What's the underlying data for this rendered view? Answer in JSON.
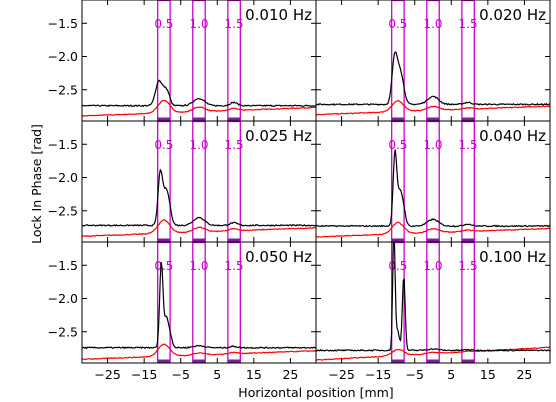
{
  "chart_data": {
    "type": "line",
    "xlabel": "Horizontal position [mm]",
    "ylabel": "Lock In Phase [rad]",
    "xlim": [
      -32,
      32
    ],
    "ylim": [
      -2.97,
      -1.15
    ],
    "x_ticks": [
      -25,
      -15,
      -5,
      5,
      15,
      25
    ],
    "y_ticks": [
      -1.5,
      -2.0,
      -2.5
    ],
    "y_tick_labels": [
      "−1.5",
      "−2.0",
      "−2.5"
    ],
    "x_tick_labels": [
      "−25",
      "−15",
      "−5",
      "5",
      "15",
      "25"
    ],
    "grid": false,
    "box_color": "#cc00cc",
    "series_colors": [
      "#000000",
      "#ff0000"
    ],
    "boxes": [
      {
        "label": "0.5",
        "x0": -11.3,
        "x1": -7.9
      },
      {
        "label": "1.0",
        "x0": -1.7,
        "x1": 1.7
      },
      {
        "label": "1.5",
        "x0": 7.9,
        "x1": 11.3
      }
    ],
    "panels": [
      {
        "label": "0.010 Hz",
        "black": {
          "base": -2.74,
          "peaks": [
            [
              -11.0,
              0.36,
              0.9
            ],
            [
              -9.2,
              0.2,
              0.8
            ],
            [
              -8.3,
              0.08,
              0.6
            ],
            [
              0,
              0.11,
              1.5
            ],
            [
              9.5,
              0.05,
              1.0
            ]
          ]
        },
        "red": {
          "base": -2.83,
          "slope": 0.002,
          "peaks": [
            [
              -9.6,
              0.19,
              1.6
            ],
            [
              0,
              0.07,
              1.6
            ],
            [
              9.5,
              0.03,
              1.2
            ]
          ]
        }
      },
      {
        "label": "0.020 Hz",
        "black": {
          "base": -2.72,
          "peaks": [
            [
              -10.5,
              0.7,
              0.7
            ],
            [
              -9.2,
              0.4,
              0.7
            ],
            [
              -8.2,
              0.2,
              0.7
            ],
            [
              0,
              0.12,
              1.5
            ],
            [
              9.5,
              0.03,
              1.0
            ]
          ]
        },
        "red": {
          "base": -2.81,
          "slope": 0.002,
          "peaks": [
            [
              -9.6,
              0.16,
              1.6
            ],
            [
              0,
              0.06,
              1.6
            ],
            [
              9.5,
              0.02,
              1.2
            ]
          ]
        }
      },
      {
        "label": "0.025 Hz",
        "black": {
          "base": -2.72,
          "peaks": [
            [
              -10.6,
              0.78,
              0.6
            ],
            [
              -9.2,
              0.42,
              0.7
            ],
            [
              -8.2,
              0.25,
              0.7
            ],
            [
              0,
              0.12,
              1.5
            ],
            [
              9.5,
              0.04,
              1.0
            ]
          ]
        },
        "red": {
          "base": -2.82,
          "slope": 0.002,
          "peaks": [
            [
              -9.6,
              0.2,
              1.6
            ],
            [
              0,
              0.07,
              1.6
            ],
            [
              9.5,
              0.03,
              1.2
            ]
          ]
        }
      },
      {
        "label": "0.040 Hz",
        "black": {
          "base": -2.73,
          "peaks": [
            [
              -10.4,
              1.1,
              0.5
            ],
            [
              -9.1,
              0.45,
              0.6
            ],
            [
              -8.1,
              0.25,
              0.6
            ],
            [
              0,
              0.1,
              1.5
            ],
            [
              9.5,
              0.03,
              1.0
            ]
          ]
        },
        "red": {
          "base": -2.83,
          "slope": 0.002,
          "peaks": [
            [
              -9.6,
              0.17,
              1.6
            ],
            [
              0,
              0.06,
              1.6
            ],
            [
              9.5,
              0.02,
              1.2
            ]
          ]
        }
      },
      {
        "label": "0.050 Hz",
        "black": {
          "base": -2.74,
          "peaks": [
            [
              -10.3,
              1.28,
              0.45
            ],
            [
              -9.0,
              0.4,
              0.55
            ],
            [
              -8.0,
              0.2,
              0.6
            ],
            [
              0,
              0.03,
              1.5
            ],
            [
              9.5,
              0.02,
              1.0
            ]
          ]
        },
        "red": {
          "base": -2.85,
          "slope": 0.002,
          "peaks": [
            [
              -9.6,
              0.18,
              1.6
            ],
            [
              0,
              0.03,
              1.6
            ],
            [
              9.5,
              0.02,
              1.2
            ]
          ]
        }
      },
      {
        "label": "0.100 Hz",
        "black": {
          "base": -2.78,
          "peaks": [
            [
              -10.7,
              1.8,
              0.32
            ],
            [
              -9.7,
              0.3,
              0.5
            ],
            [
              -8.0,
              1.12,
              0.38
            ],
            [
              0,
              0.02,
              1.5
            ],
            [
              9.5,
              0.01,
              1.0
            ]
          ]
        },
        "red": {
          "base": -2.83,
          "slope": 0.003,
          "peaks": [
            [
              -9.6,
              0.09,
              1.6
            ],
            [
              0,
              0.02,
              1.6
            ],
            [
              9.5,
              0.01,
              1.2
            ]
          ]
        }
      }
    ]
  }
}
